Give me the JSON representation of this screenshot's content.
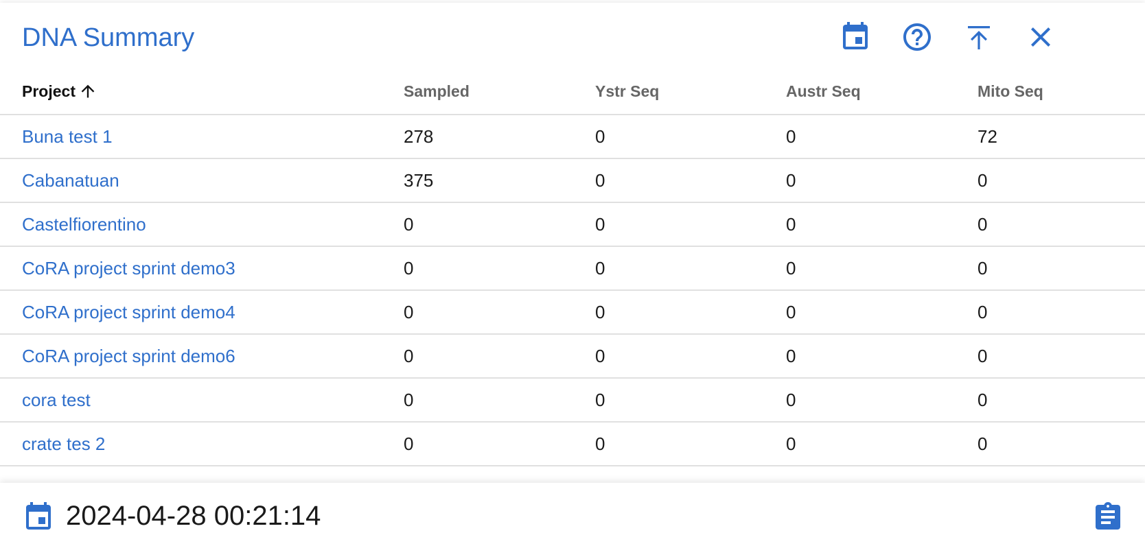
{
  "header": {
    "title": "DNA Summary",
    "icons": [
      "calendar-icon",
      "help-icon",
      "upload-icon",
      "close-icon"
    ]
  },
  "table": {
    "columns": [
      "Project",
      "Sampled",
      "Ystr Seq",
      "Austr Seq",
      "Mito Seq"
    ],
    "sort": {
      "column": "Project",
      "direction": "ascending"
    },
    "rows": [
      {
        "project": "Buna test 1",
        "sampled": "278",
        "ystr": "0",
        "austr": "0",
        "mito": "72"
      },
      {
        "project": "Cabanatuan",
        "sampled": "375",
        "ystr": "0",
        "austr": "0",
        "mito": "0"
      },
      {
        "project": "Castelfiorentino",
        "sampled": "0",
        "ystr": "0",
        "austr": "0",
        "mito": "0"
      },
      {
        "project": "CoRA project sprint demo3",
        "sampled": "0",
        "ystr": "0",
        "austr": "0",
        "mito": "0"
      },
      {
        "project": "CoRA project sprint demo4",
        "sampled": "0",
        "ystr": "0",
        "austr": "0",
        "mito": "0"
      },
      {
        "project": "CoRA project sprint demo6",
        "sampled": "0",
        "ystr": "0",
        "austr": "0",
        "mito": "0"
      },
      {
        "project": "cora test",
        "sampled": "0",
        "ystr": "0",
        "austr": "0",
        "mito": "0"
      },
      {
        "project": "crate tes 2",
        "sampled": "0",
        "ystr": "0",
        "austr": "0",
        "mito": "0"
      }
    ]
  },
  "footer": {
    "timestamp": "2024-04-28 00:21:14",
    "icons": [
      "calendar-icon",
      "clipboard-icon"
    ]
  },
  "colors": {
    "accent": "#2f6fcb",
    "text": "#1a1a1a",
    "header_text": "#666666",
    "divider": "#e0e0e0"
  }
}
